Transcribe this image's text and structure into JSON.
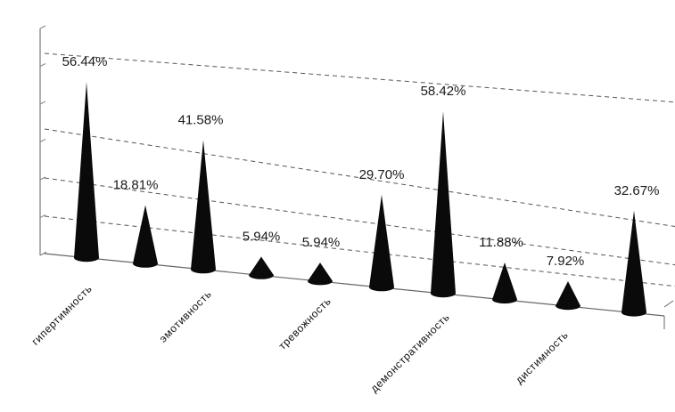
{
  "chart_data": {
    "type": "bar",
    "shape": "cone-3d",
    "grid": true,
    "legend": "none",
    "ylim": [
      0,
      60
    ],
    "values": [
      56.44,
      18.81,
      41.58,
      5.94,
      5.94,
      29.7,
      58.42,
      11.88,
      7.92,
      32.67
    ],
    "data_labels": [
      "56.44%",
      "18.81%",
      "41.58%",
      "5.94%",
      "5.94%",
      "29.70%",
      "58.42%",
      "11.88%",
      "7.92%",
      "32.67%"
    ],
    "tick_labels": [
      "гипертимность",
      "эмотивность",
      "тревожность",
      "демонстративность",
      "дистимность"
    ],
    "colors": {
      "cone": "#0a0a0a",
      "grid": "#555555",
      "text": "#1a1a1a"
    }
  }
}
